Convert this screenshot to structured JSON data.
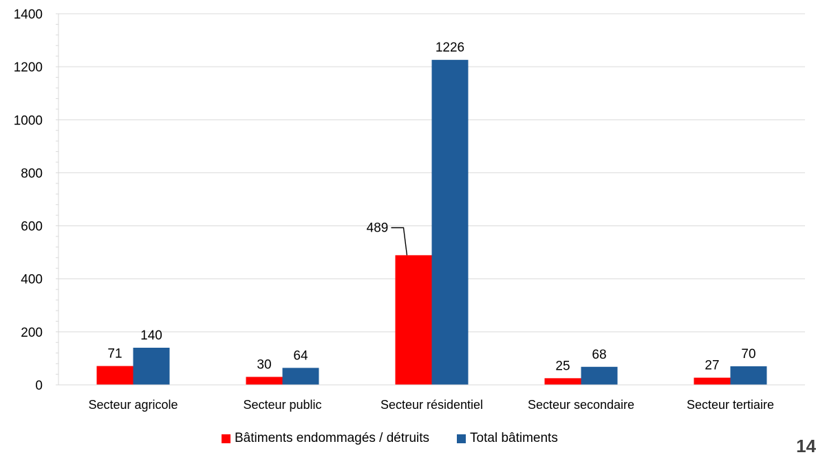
{
  "chart_data": {
    "type": "bar",
    "categories": [
      "Secteur agricole",
      "Secteur public",
      "Secteur résidentiel",
      "Secteur secondaire",
      "Secteur tertiaire"
    ],
    "series": [
      {
        "name": "Bâtiments endommagés / détruits",
        "values": [
          71,
          30,
          489,
          25,
          27
        ],
        "color": "#ff0000"
      },
      {
        "name": "Total bâtiments",
        "values": [
          140,
          64,
          1226,
          68,
          70
        ],
        "color": "#1f5c99"
      }
    ],
    "ylim": [
      0,
      1400
    ],
    "yticks": [
      "0",
      "200",
      "400",
      "600",
      "800",
      "1000",
      "1200",
      "1400"
    ],
    "grid": true,
    "legend": "bottom"
  },
  "page_number": "14"
}
